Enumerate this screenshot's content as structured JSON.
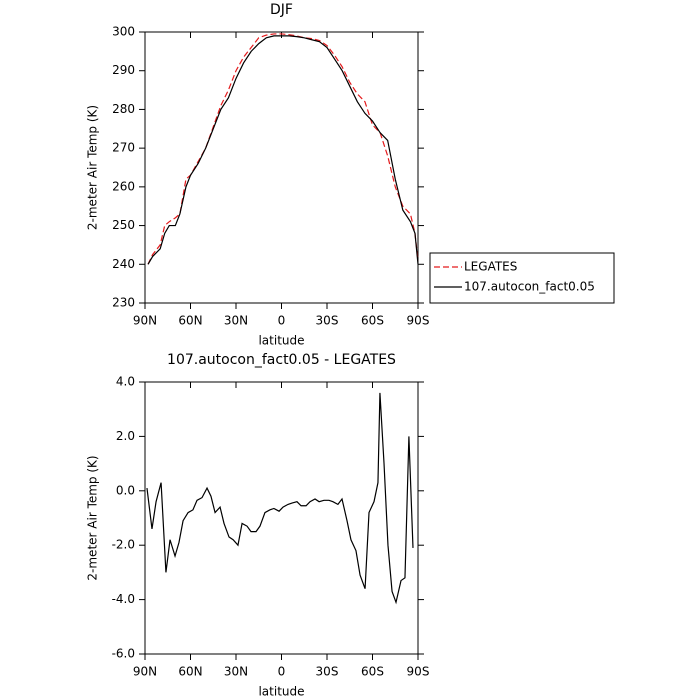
{
  "chart_data": [
    {
      "type": "line",
      "title": "DJF",
      "x_label": "latitude",
      "y_label": "2-meter Air Temp (K)",
      "x": [
        88,
        85,
        80,
        77,
        74,
        70,
        67,
        63,
        60,
        55,
        50,
        45,
        40,
        35,
        30,
        25,
        20,
        15,
        10,
        5,
        0,
        -5,
        -10,
        -15,
        -20,
        -25,
        -30,
        -35,
        -40,
        -45,
        -50,
        -55,
        -60,
        -65,
        -70,
        -75,
        -80,
        -85,
        -88,
        -90
      ],
      "series": [
        {
          "name": "LEGATES",
          "color": "#e41a1c",
          "linestyle": "dashed",
          "values": [
            240,
            242.5,
            245,
            250,
            251,
            252,
            253,
            262,
            263,
            266.5,
            270,
            275.5,
            281,
            285,
            290,
            293.5,
            296,
            298.5,
            299.2,
            299.5,
            299.5,
            299.3,
            299,
            298.5,
            298.3,
            297.8,
            296.5,
            294,
            291,
            287,
            284,
            282,
            276,
            274,
            268,
            260,
            255,
            253,
            248,
            241
          ]
        },
        {
          "name": "107.autocon_fact0.05",
          "color": "#000000",
          "linestyle": "solid",
          "values": [
            240,
            242,
            244,
            248,
            250,
            250,
            253,
            260,
            263,
            266,
            270,
            275,
            280,
            283,
            288,
            292,
            295,
            297,
            298.5,
            299,
            299,
            299,
            298.8,
            298.5,
            298,
            297.5,
            296,
            293,
            290,
            286,
            282,
            279,
            277,
            274,
            272,
            262,
            254,
            251,
            248,
            240
          ]
        }
      ],
      "xlim": [
        90,
        -90
      ],
      "xticks": [
        {
          "value": 90,
          "label": "90N"
        },
        {
          "value": 60,
          "label": "60N"
        },
        {
          "value": 30,
          "label": "30N"
        },
        0,
        {
          "value": -30,
          "label": "30S"
        },
        {
          "value": -60,
          "label": "60S"
        },
        {
          "value": -90,
          "label": "90S"
        }
      ],
      "ylim": [
        230,
        300
      ],
      "yticks": [
        230,
        240,
        250,
        260,
        270,
        280,
        290,
        300
      ],
      "legend": "right"
    },
    {
      "type": "line",
      "title": "107.autocon_fact0.05 - LEGATES",
      "x_label": "latitude",
      "y_label": "2-meter Air Temp (K)",
      "x": [
        88.7,
        85.4,
        82.7,
        79.4,
        76.2,
        73.5,
        70.2,
        67.6,
        64.9,
        61.6,
        58.4,
        55.7,
        52.4,
        49.1,
        46.5,
        43.8,
        40.5,
        37.9,
        34.6,
        31.9,
        28.7,
        26,
        22.7,
        20.1,
        16.8,
        14.2,
        10.9,
        7.6,
        5,
        1.6,
        -1,
        -4.3,
        -6.9,
        -10.2,
        -12.9,
        -16.2,
        -18.8,
        -22.1,
        -24.8,
        -28,
        -31.3,
        -33.9,
        -37.2,
        -39.9,
        -43.2,
        -45.8,
        -49.1,
        -51.8,
        -55.1,
        -57.7,
        -61,
        -63.6,
        -64.9,
        -67.6,
        -70.2,
        -72.9,
        -75.5,
        -78.8,
        -81.4,
        -84,
        -86.7
      ],
      "series": [
        {
          "color": "#000000",
          "linestyle": "solid",
          "values": [
            0.1,
            -1.4,
            -0.4,
            0.3,
            -3,
            -1.8,
            -2.4,
            -1.9,
            -1.1,
            -0.8,
            -0.7,
            -0.35,
            -0.25,
            0.1,
            -0.2,
            -0.8,
            -0.6,
            -1.2,
            -1.7,
            -1.8,
            -2,
            -1.2,
            -1.3,
            -1.5,
            -1.5,
            -1.3,
            -0.8,
            -0.7,
            -0.65,
            -0.75,
            -0.6,
            -0.5,
            -0.45,
            -0.4,
            -0.55,
            -0.55,
            -0.4,
            -0.3,
            -0.4,
            -0.35,
            -0.35,
            -0.4,
            -0.5,
            -0.3,
            -1.1,
            -1.8,
            -2.2,
            -3.1,
            -3.6,
            -0.8,
            -0.4,
            0.3,
            3.6,
            1,
            -2,
            -3.7,
            -4.1,
            -3.3,
            -3.2,
            2,
            -2.1
          ]
        }
      ],
      "xlim": [
        90,
        -90
      ],
      "xticks": [
        {
          "value": 90,
          "label": "90N"
        },
        {
          "value": 60,
          "label": "60N"
        },
        {
          "value": 30,
          "label": "30N"
        },
        0,
        {
          "value": -30,
          "label": "30S"
        },
        {
          "value": -60,
          "label": "60S"
        },
        {
          "value": -90,
          "label": "90S"
        }
      ],
      "ylim": [
        -6,
        4
      ],
      "yticks": [
        {
          "value": -6,
          "label": "-6.0"
        },
        {
          "value": -4,
          "label": "-4.0"
        },
        {
          "value": -2,
          "label": "-2.0"
        },
        {
          "value": 0,
          "label": "0.0"
        },
        {
          "value": 2,
          "label": "2.0"
        },
        {
          "value": 4,
          "label": "4.0"
        }
      ]
    }
  ]
}
